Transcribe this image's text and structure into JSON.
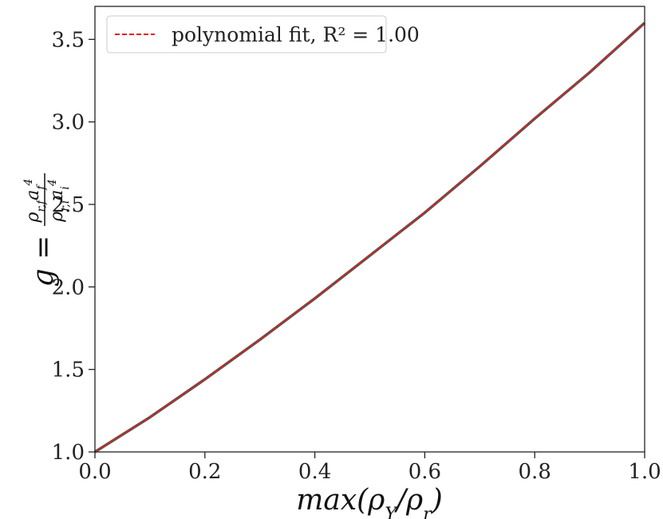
{
  "chart_data": {
    "type": "line",
    "xlabel": "max(ρY/ρr)",
    "ylabel": "g = ρr,f af^4 / ρr,i ai^4",
    "xlim": [
      0.0,
      1.0
    ],
    "ylim": [
      1.0,
      3.7
    ],
    "x_ticks": [
      "0.0",
      "0.2",
      "0.4",
      "0.6",
      "0.8",
      "1.0"
    ],
    "y_ticks": [
      "1.0",
      "1.5",
      "2.0",
      "2.5",
      "3.0",
      "3.5"
    ],
    "grid": false,
    "legend_position": "top-left",
    "series": [
      {
        "name": "",
        "style": "solid",
        "color": "#555555",
        "x": [
          0.0,
          0.1,
          0.2,
          0.3,
          0.4,
          0.5,
          0.6,
          0.7,
          0.8,
          0.9,
          1.0
        ],
        "y": [
          1.0,
          1.21,
          1.44,
          1.68,
          1.93,
          2.19,
          2.45,
          2.73,
          3.02,
          3.3,
          3.6
        ]
      },
      {
        "name": "polynomial fit, R² = 1.00",
        "style": "dashed",
        "color": "#e0201a",
        "x": [
          0.0,
          0.1,
          0.2,
          0.3,
          0.4,
          0.5,
          0.6,
          0.7,
          0.8,
          0.9,
          1.0
        ],
        "y": [
          1.0,
          1.21,
          1.44,
          1.68,
          1.93,
          2.19,
          2.45,
          2.73,
          3.02,
          3.3,
          3.6
        ]
      }
    ]
  }
}
